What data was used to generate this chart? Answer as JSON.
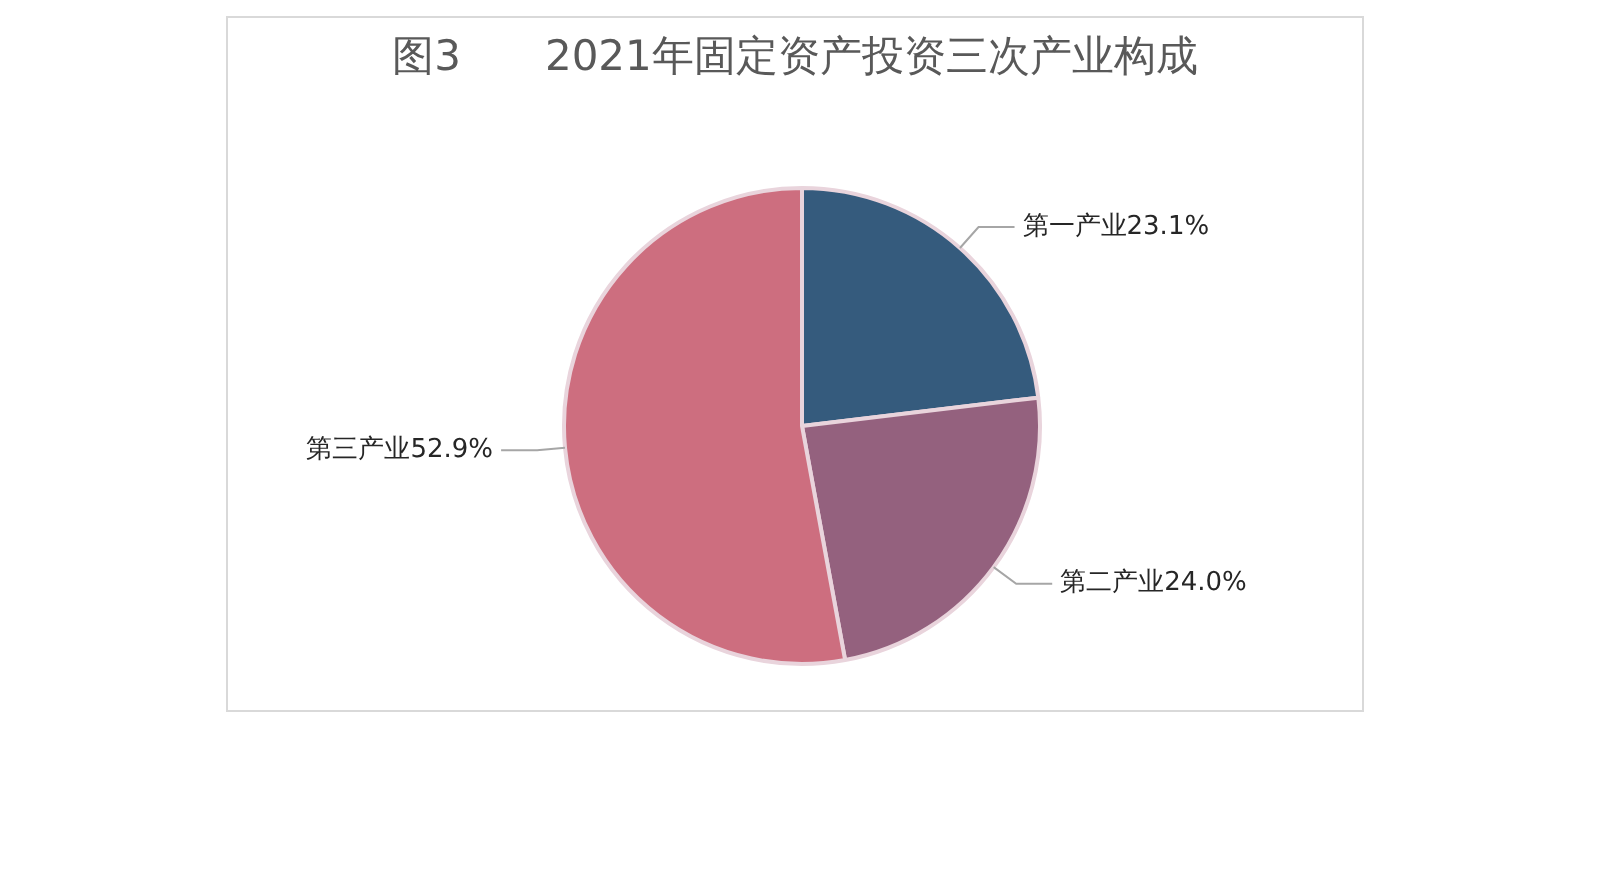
{
  "chart_data": {
    "type": "pie",
    "title": "图3　　2021年固定资产投资三次产业构成",
    "categories": [
      "第一产业",
      "第二产业",
      "第三产业"
    ],
    "values": [
      23.1,
      24.0,
      52.9
    ],
    "value_labels": [
      "23.1%",
      "24.0%",
      "52.9%"
    ],
    "colors": [
      "#355b7d",
      "#94617e",
      "#cd6e7f"
    ],
    "legend": false
  }
}
